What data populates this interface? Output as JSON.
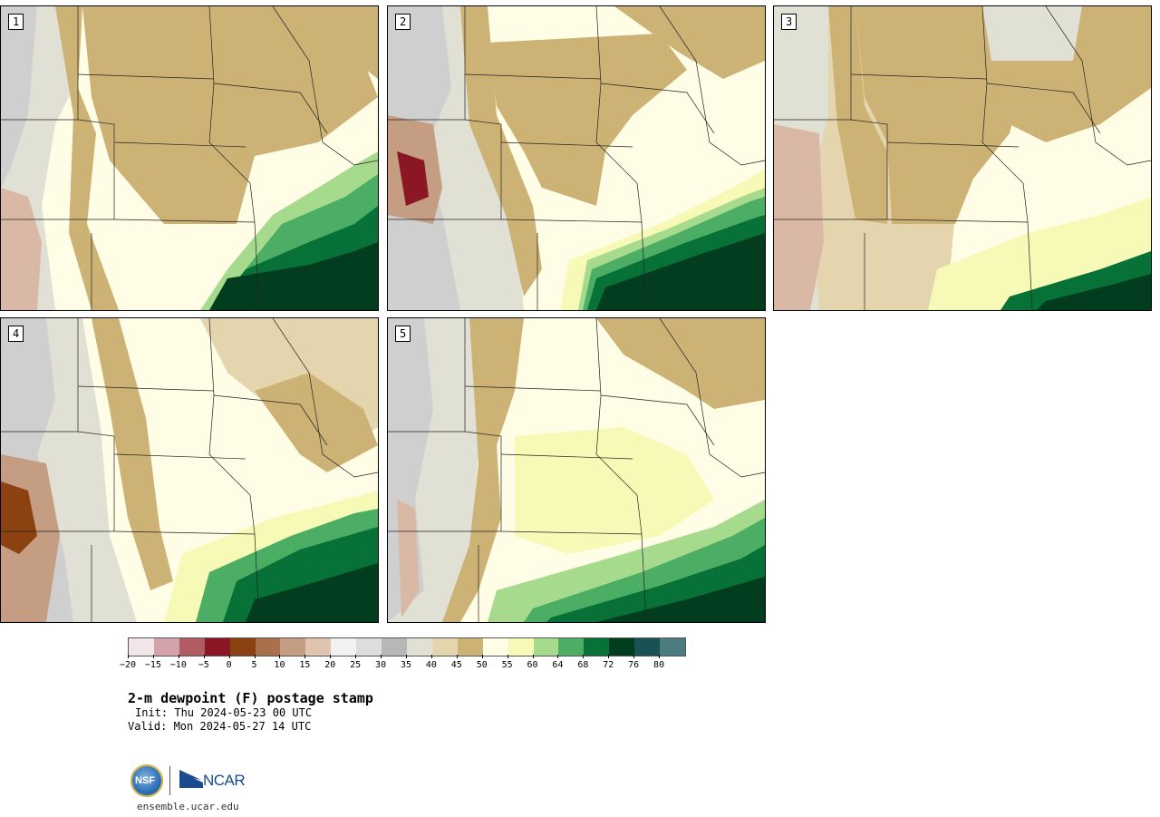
{
  "panels": [
    {
      "label": "1"
    },
    {
      "label": "2"
    },
    {
      "label": "3"
    },
    {
      "label": "4"
    },
    {
      "label": "5"
    }
  ],
  "colorbar": {
    "colors": [
      "#f2e6ea",
      "#d4a2aa",
      "#b25b62",
      "#8a1723",
      "#8b4210",
      "#a8714c",
      "#c49d83",
      "#e0c4b0",
      "#f1f1f1",
      "#dddddd",
      "#b7b7b7",
      "#e0e0d4",
      "#e4d5ae",
      "#cdb276",
      "#fffde6",
      "#f7fab7",
      "#a6db8e",
      "#4cad65",
      "#087137",
      "#033d1f",
      "#1a5154",
      "#4d7c7f"
    ],
    "tick_labels": [
      "−20",
      "−15",
      "−10",
      "−5",
      "0",
      "5",
      "10",
      "15",
      "20",
      "25",
      "30",
      "35",
      "40",
      "45",
      "50",
      "55",
      "60",
      "64",
      "68",
      "72",
      "76",
      "80"
    ]
  },
  "title": "2-m dewpoint (F) postage stamp",
  "init": "Init: Thu 2024-05-23 00 UTC",
  "valid": "Valid: Mon 2024-05-27 14 UTC",
  "logos": {
    "nsf": "NSF",
    "ncar": "NCAR"
  },
  "website": "ensemble.ucar.edu"
}
